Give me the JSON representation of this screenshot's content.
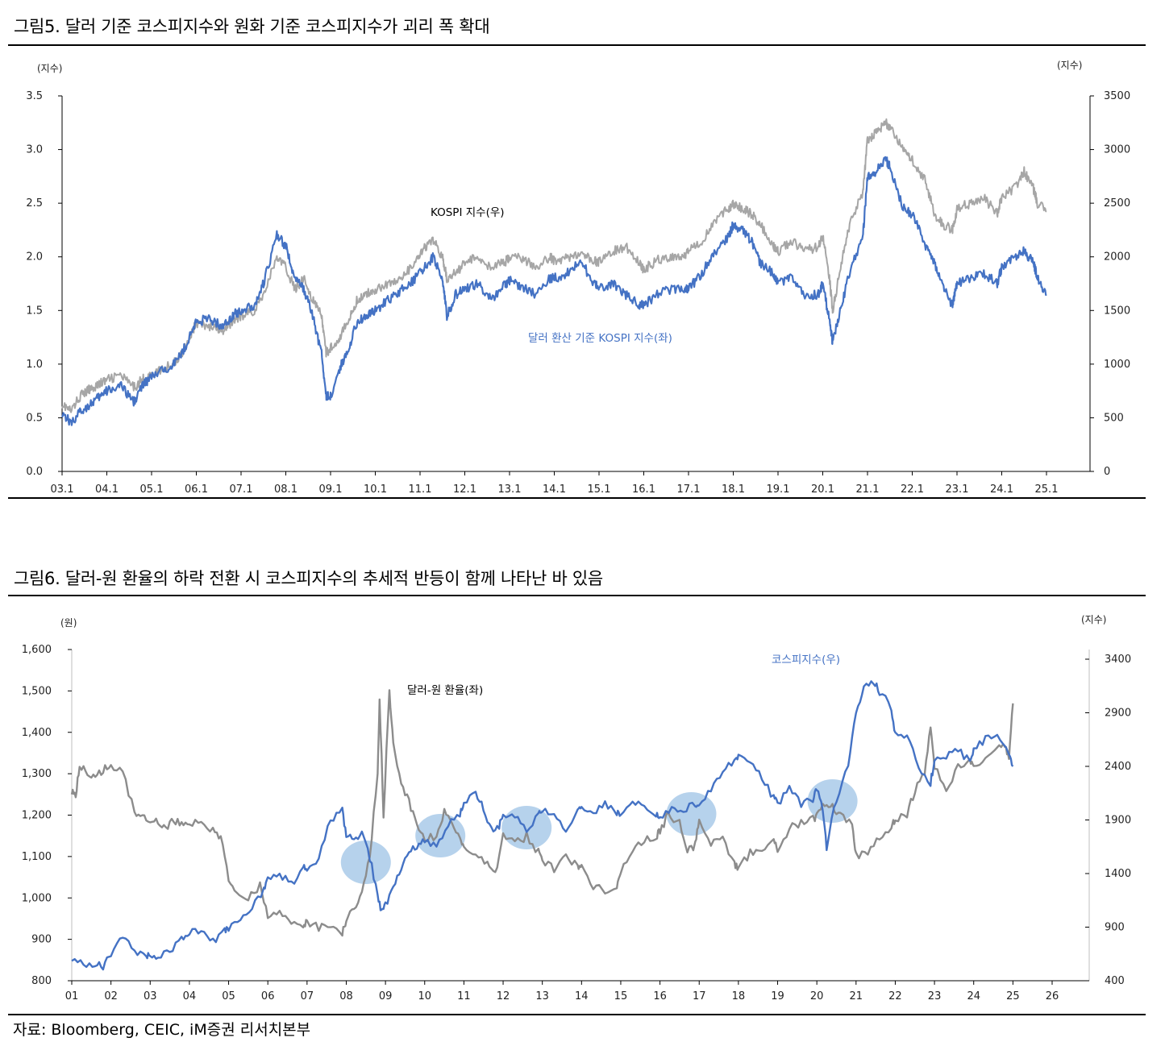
{
  "figure5": {
    "title": "그림5.   달러 기준 코스피지수와 원화 기준 코스피지수가 괴리 폭 확대",
    "left_unit": "(지수)",
    "right_unit": "(지수)",
    "annotation_kospi": "KOSPI 지수(우)",
    "annotation_usd": "달러 환산 기준 KOSPI 지수(좌)",
    "colors": {
      "kospi": "#a6a6a6",
      "usd_kospi": "#4472c4"
    }
  },
  "figure6": {
    "title": "그림6.   달러-원 환율의 하락 전환 시 코스피지수의 추세적 반등이 함께 나타난 바 있음",
    "left_unit": "(원)",
    "right_unit": "(지수)",
    "annotation_fx": "달러-원 환율(좌)",
    "annotation_kospi": "코스피지수(우)",
    "colors": {
      "fx": "#8c8c8c",
      "kospi": "#4472c4",
      "highlight": "#9dc3e6"
    }
  },
  "source": "자료: Bloomberg, CEIC, iM증권 리서치본부",
  "chart_data": [
    {
      "type": "line",
      "title": "달러 기준 코스피지수와 원화 기준 코스피지수가 괴리 폭 확대",
      "x_tick_labels": [
        "03.1",
        "04.1",
        "05.1",
        "06.1",
        "07.1",
        "08.1",
        "09.1",
        "10.1",
        "11.1",
        "12.1",
        "13.1",
        "14.1",
        "15.1",
        "16.1",
        "17.1",
        "18.1",
        "19.1",
        "20.1",
        "21.1",
        "22.1",
        "23.1",
        "24.1",
        "25.1"
      ],
      "xlim": [
        2003.0,
        2025.0
      ],
      "y_left": {
        "label": "(지수)",
        "lim": [
          0,
          3.5
        ],
        "ticks": [
          "0.0",
          "0.5",
          "1.0",
          "1.5",
          "2.0",
          "2.5",
          "3.0",
          "3.5"
        ]
      },
      "y_right": {
        "label": "(지수)",
        "lim": [
          0,
          3500
        ],
        "ticks": [
          "0",
          "500",
          "1000",
          "1500",
          "2000",
          "2500",
          "3000",
          "3500"
        ]
      },
      "series": [
        {
          "name": "KOSPI 지수(우)",
          "axis": "right",
          "color": "#a6a6a6",
          "x": [
            2003.0,
            2003.2,
            2003.4,
            2003.6,
            2003.8,
            2004.0,
            2004.3,
            2004.6,
            2004.8,
            2005.0,
            2005.3,
            2005.6,
            2005.8,
            2006.0,
            2006.3,
            2006.6,
            2006.8,
            2007.0,
            2007.3,
            2007.5,
            2007.8,
            2008.0,
            2008.2,
            2008.4,
            2008.6,
            2008.8,
            2008.9,
            2009.0,
            2009.2,
            2009.4,
            2009.6,
            2009.8,
            2010.0,
            2010.3,
            2010.6,
            2010.9,
            2011.1,
            2011.3,
            2011.5,
            2011.6,
            2011.8,
            2012.0,
            2012.3,
            2012.6,
            2012.9,
            2013.0,
            2013.3,
            2013.6,
            2013.9,
            2014.0,
            2014.3,
            2014.6,
            2014.9,
            2015.0,
            2015.3,
            2015.6,
            2015.9,
            2016.0,
            2016.3,
            2016.6,
            2016.9,
            2017.0,
            2017.3,
            2017.6,
            2017.9,
            2018.0,
            2018.2,
            2018.4,
            2018.6,
            2018.9,
            2019.0,
            2019.3,
            2019.6,
            2019.9,
            2020.0,
            2020.15,
            2020.22,
            2020.4,
            2020.6,
            2020.9,
            2021.0,
            2021.2,
            2021.4,
            2021.5,
            2021.8,
            2022.0,
            2022.3,
            2022.5,
            2022.7,
            2022.9,
            2023.0,
            2023.3,
            2023.6,
            2023.9,
            2024.0,
            2024.3,
            2024.5,
            2024.7,
            2024.8,
            2025.0
          ],
          "y": [
            630,
            560,
            700,
            760,
            810,
            850,
            900,
            780,
            860,
            900,
            960,
            1050,
            1200,
            1380,
            1350,
            1300,
            1400,
            1450,
            1500,
            1650,
            2000,
            1900,
            1700,
            1800,
            1600,
            1450,
            1100,
            1150,
            1250,
            1400,
            1600,
            1650,
            1700,
            1750,
            1800,
            1950,
            2080,
            2150,
            2000,
            1800,
            1850,
            1950,
            2000,
            1900,
            1950,
            2000,
            1980,
            1900,
            2000,
            1960,
            2000,
            2020,
            1960,
            1950,
            2050,
            2100,
            1950,
            1880,
            1970,
            2000,
            2010,
            2060,
            2150,
            2350,
            2450,
            2500,
            2450,
            2400,
            2300,
            2100,
            2050,
            2150,
            2050,
            2100,
            2200,
            1800,
            1500,
            1900,
            2300,
            2600,
            3100,
            3150,
            3250,
            3200,
            3000,
            2900,
            2700,
            2400,
            2300,
            2250,
            2450,
            2500,
            2550,
            2400,
            2550,
            2650,
            2800,
            2650,
            2500,
            2420
          ]
        },
        {
          "name": "달러 환산 기준 KOSPI 지수(좌)",
          "axis": "left",
          "color": "#4472c4",
          "x": [
            2003.0,
            2003.2,
            2003.4,
            2003.6,
            2003.8,
            2004.0,
            2004.3,
            2004.6,
            2004.8,
            2005.0,
            2005.3,
            2005.6,
            2005.8,
            2006.0,
            2006.3,
            2006.6,
            2006.8,
            2007.0,
            2007.3,
            2007.5,
            2007.8,
            2008.0,
            2008.2,
            2008.4,
            2008.6,
            2008.8,
            2008.9,
            2009.0,
            2009.2,
            2009.4,
            2009.6,
            2009.8,
            2010.0,
            2010.3,
            2010.6,
            2010.9,
            2011.1,
            2011.3,
            2011.5,
            2011.6,
            2011.8,
            2012.0,
            2012.3,
            2012.6,
            2012.9,
            2013.0,
            2013.3,
            2013.6,
            2013.9,
            2014.0,
            2014.3,
            2014.6,
            2014.9,
            2015.0,
            2015.3,
            2015.6,
            2015.9,
            2016.0,
            2016.3,
            2016.6,
            2016.9,
            2017.0,
            2017.3,
            2017.6,
            2017.9,
            2018.0,
            2018.2,
            2018.4,
            2018.6,
            2018.9,
            2019.0,
            2019.3,
            2019.6,
            2019.9,
            2020.0,
            2020.15,
            2020.22,
            2020.4,
            2020.6,
            2020.9,
            2021.0,
            2021.2,
            2021.4,
            2021.5,
            2021.8,
            2022.0,
            2022.3,
            2022.5,
            2022.7,
            2022.9,
            2023.0,
            2023.3,
            2023.6,
            2023.9,
            2024.0,
            2024.3,
            2024.5,
            2024.7,
            2024.8,
            2025.0
          ],
          "y": [
            0.55,
            0.45,
            0.55,
            0.62,
            0.68,
            0.75,
            0.8,
            0.65,
            0.8,
            0.88,
            0.95,
            1.05,
            1.2,
            1.4,
            1.42,
            1.35,
            1.45,
            1.5,
            1.55,
            1.75,
            2.2,
            2.1,
            1.8,
            1.7,
            1.45,
            1.1,
            0.7,
            0.7,
            0.95,
            1.15,
            1.4,
            1.45,
            1.5,
            1.6,
            1.7,
            1.8,
            1.9,
            2.0,
            1.8,
            1.45,
            1.65,
            1.7,
            1.75,
            1.6,
            1.75,
            1.78,
            1.72,
            1.65,
            1.8,
            1.8,
            1.85,
            1.95,
            1.75,
            1.7,
            1.75,
            1.65,
            1.55,
            1.55,
            1.65,
            1.7,
            1.7,
            1.7,
            1.85,
            2.05,
            2.2,
            2.3,
            2.25,
            2.15,
            1.95,
            1.85,
            1.75,
            1.8,
            1.65,
            1.65,
            1.75,
            1.4,
            1.2,
            1.5,
            1.85,
            2.2,
            2.75,
            2.8,
            2.9,
            2.85,
            2.45,
            2.4,
            2.1,
            1.95,
            1.7,
            1.55,
            1.75,
            1.8,
            1.85,
            1.75,
            1.9,
            2.0,
            2.05,
            1.95,
            1.8,
            1.65
          ]
        }
      ],
      "annotations": [
        "KOSPI 지수(우)",
        "달러 환산 기준 KOSPI 지수(좌)"
      ]
    },
    {
      "type": "line",
      "title": "달러-원 환율의 하락 전환 시 코스피지수의 추세적 반등이 함께 나타난 바 있음",
      "x_tick_labels": [
        "01",
        "02",
        "03",
        "04",
        "05",
        "06",
        "07",
        "08",
        "09",
        "10",
        "11",
        "12",
        "13",
        "14",
        "15",
        "16",
        "17",
        "18",
        "19",
        "20",
        "21",
        "22",
        "23",
        "24",
        "25",
        "26"
      ],
      "xlim": [
        2001,
        2026
      ],
      "y_left": {
        "label": "(원)",
        "lim": [
          800,
          1600
        ],
        "ticks": [
          "800",
          "900",
          "1,000",
          "1,100",
          "1,200",
          "1,300",
          "1,400",
          "1,500",
          "1,600"
        ]
      },
      "y_right": {
        "label": "(지수)",
        "lim": [
          400,
          3500
        ],
        "ticks": [
          "400",
          "900",
          "1400",
          "1900",
          "2400",
          "2900",
          "3400"
        ]
      },
      "series": [
        {
          "name": "달러-원 환율(좌)",
          "axis": "left",
          "color": "#8c8c8c",
          "x": [
            2001.0,
            2001.1,
            2001.2,
            2001.4,
            2001.6,
            2001.8,
            2002.0,
            2002.3,
            2002.6,
            2002.8,
            2003.0,
            2003.2,
            2003.4,
            2003.6,
            2003.8,
            2004.0,
            2004.3,
            2004.6,
            2004.8,
            2005.0,
            2005.2,
            2005.5,
            2005.8,
            2006.0,
            2006.3,
            2006.6,
            2006.9,
            2007.0,
            2007.3,
            2007.6,
            2007.9,
            2008.0,
            2008.2,
            2008.4,
            2008.6,
            2008.8,
            2008.85,
            2008.95,
            2009.1,
            2009.2,
            2009.4,
            2009.6,
            2009.8,
            2010.0,
            2010.3,
            2010.5,
            2010.7,
            2010.9,
            2011.0,
            2011.3,
            2011.6,
            2011.8,
            2012.0,
            2012.3,
            2012.6,
            2012.9,
            2013.0,
            2013.3,
            2013.6,
            2013.9,
            2014.0,
            2014.3,
            2014.6,
            2014.9,
            2015.0,
            2015.3,
            2015.6,
            2015.9,
            2016.0,
            2016.2,
            2016.5,
            2016.7,
            2016.9,
            2017.0,
            2017.3,
            2017.6,
            2017.9,
            2018.0,
            2018.3,
            2018.6,
            2018.9,
            2019.0,
            2019.3,
            2019.6,
            2019.9,
            2020.0,
            2020.2,
            2020.4,
            2020.6,
            2020.9,
            2021.0,
            2021.3,
            2021.6,
            2021.9,
            2022.0,
            2022.3,
            2022.5,
            2022.75,
            2022.9,
            2023.0,
            2023.3,
            2023.6,
            2023.9,
            2024.0,
            2024.3,
            2024.6,
            2024.8,
            2024.9,
            2025.0
          ],
          "y": [
            1260,
            1245,
            1320,
            1300,
            1290,
            1310,
            1320,
            1300,
            1210,
            1200,
            1190,
            1180,
            1170,
            1190,
            1180,
            1170,
            1190,
            1160,
            1150,
            1040,
            1010,
            1000,
            1030,
            960,
            960,
            940,
            930,
            940,
            930,
            925,
            915,
            940,
            980,
            1010,
            1100,
            1300,
            1480,
            1200,
            1500,
            1370,
            1280,
            1230,
            1170,
            1140,
            1150,
            1210,
            1180,
            1140,
            1120,
            1100,
            1090,
            1060,
            1150,
            1130,
            1150,
            1110,
            1090,
            1070,
            1100,
            1080,
            1070,
            1030,
            1020,
            1030,
            1070,
            1110,
            1140,
            1150,
            1160,
            1200,
            1180,
            1110,
            1130,
            1190,
            1130,
            1140,
            1080,
            1070,
            1110,
            1120,
            1140,
            1110,
            1170,
            1180,
            1190,
            1200,
            1230,
            1220,
            1200,
            1180,
            1100,
            1110,
            1150,
            1170,
            1190,
            1200,
            1260,
            1300,
            1420,
            1320,
            1260,
            1320,
            1330,
            1310,
            1330,
            1360,
            1370,
            1330,
            1470
          ]
        },
        {
          "name": "코스피지수(우)",
          "axis": "right",
          "color": "#4472c4",
          "x": [
            2001.0,
            2001.3,
            2001.6,
            2001.8,
            2002.0,
            2002.3,
            2002.6,
            2002.9,
            2003.0,
            2003.2,
            2003.5,
            2003.8,
            2004.0,
            2004.3,
            2004.6,
            2004.9,
            2005.0,
            2005.3,
            2005.6,
            2005.9,
            2006.0,
            2006.3,
            2006.6,
            2006.9,
            2007.0,
            2007.3,
            2007.6,
            2007.9,
            2008.0,
            2008.2,
            2008.4,
            2008.6,
            2008.8,
            2008.9,
            2009.0,
            2009.2,
            2009.4,
            2009.6,
            2009.8,
            2010.0,
            2010.3,
            2010.6,
            2010.9,
            2011.0,
            2011.3,
            2011.5,
            2011.7,
            2011.9,
            2012.0,
            2012.3,
            2012.6,
            2012.9,
            2013.0,
            2013.3,
            2013.6,
            2013.9,
            2014.0,
            2014.3,
            2014.6,
            2014.9,
            2015.0,
            2015.3,
            2015.6,
            2015.9,
            2016.0,
            2016.3,
            2016.6,
            2016.9,
            2017.0,
            2017.3,
            2017.6,
            2017.9,
            2018.0,
            2018.3,
            2018.6,
            2018.9,
            2019.0,
            2019.3,
            2019.6,
            2019.9,
            2020.0,
            2020.15,
            2020.25,
            2020.5,
            2020.8,
            2021.0,
            2021.2,
            2021.45,
            2021.6,
            2021.9,
            2022.0,
            2022.3,
            2022.6,
            2022.9,
            2023.0,
            2023.3,
            2023.6,
            2023.9,
            2024.0,
            2024.3,
            2024.6,
            2024.9,
            2025.0
          ],
          "y": [
            620,
            560,
            560,
            530,
            640,
            800,
            680,
            650,
            610,
            600,
            680,
            780,
            860,
            880,
            760,
            880,
            900,
            980,
            1100,
            1250,
            1370,
            1400,
            1300,
            1450,
            1440,
            1550,
            1900,
            2000,
            1760,
            1700,
            1800,
            1550,
            1200,
            1050,
            1100,
            1300,
            1450,
            1600,
            1650,
            1700,
            1650,
            1850,
            1950,
            2050,
            2150,
            2000,
            1800,
            1850,
            1950,
            1950,
            1800,
            1950,
            2000,
            1950,
            1800,
            2000,
            2000,
            1950,
            2050,
            1960,
            1950,
            2050,
            2050,
            1950,
            1900,
            2000,
            2000,
            2050,
            2050,
            2200,
            2350,
            2450,
            2500,
            2450,
            2300,
            2100,
            2050,
            2200,
            2050,
            2100,
            2200,
            2000,
            1650,
            2100,
            2400,
            2900,
            3150,
            3200,
            3100,
            2950,
            2700,
            2700,
            2400,
            2250,
            2450,
            2500,
            2550,
            2450,
            2550,
            2650,
            2700,
            2500,
            2400
          ]
        }
      ],
      "highlights_at_year": [
        2008.5,
        2010.4,
        2012.6,
        2016.8,
        2020.4
      ],
      "annotations": [
        "달러-원 환율(좌)",
        "코스피지수(우)"
      ]
    }
  ]
}
